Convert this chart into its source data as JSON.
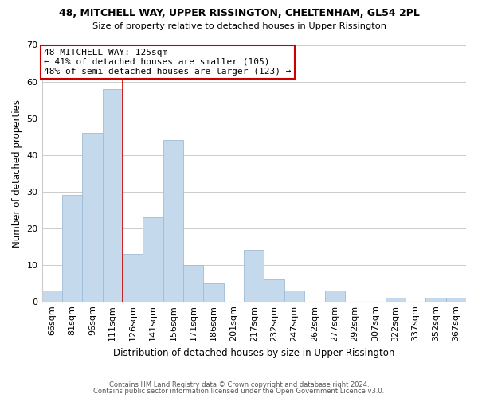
{
  "title1": "48, MITCHELL WAY, UPPER RISSINGTON, CHELTENHAM, GL54 2PL",
  "title2": "Size of property relative to detached houses in Upper Rissington",
  "xlabel": "Distribution of detached houses by size in Upper Rissington",
  "ylabel": "Number of detached properties",
  "bar_color": "#c5d9ed",
  "bar_edge_color": "#a0bcd6",
  "categories": [
    "66sqm",
    "81sqm",
    "96sqm",
    "111sqm",
    "126sqm",
    "141sqm",
    "156sqm",
    "171sqm",
    "186sqm",
    "201sqm",
    "217sqm",
    "232sqm",
    "247sqm",
    "262sqm",
    "277sqm",
    "292sqm",
    "307sqm",
    "322sqm",
    "337sqm",
    "352sqm",
    "367sqm"
  ],
  "values": [
    3,
    29,
    46,
    58,
    13,
    23,
    44,
    10,
    5,
    0,
    14,
    6,
    3,
    0,
    3,
    0,
    0,
    1,
    0,
    1,
    1
  ],
  "ylim": [
    0,
    70
  ],
  "yticks": [
    0,
    10,
    20,
    30,
    40,
    50,
    60,
    70
  ],
  "vline_color": "#cc0000",
  "annotation_title": "48 MITCHELL WAY: 125sqm",
  "annotation_line1": "← 41% of detached houses are smaller (105)",
  "annotation_line2": "48% of semi-detached houses are larger (123) →",
  "annotation_box_color": "#ffffff",
  "annotation_box_edge": "#cc0000",
  "footer1": "Contains HM Land Registry data © Crown copyright and database right 2024.",
  "footer2": "Contains public sector information licensed under the Open Government Licence v3.0.",
  "background_color": "#ffffff",
  "grid_color": "#cccccc"
}
